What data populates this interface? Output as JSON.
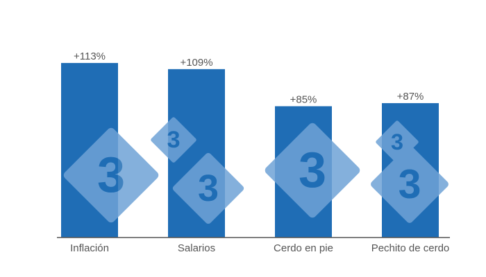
{
  "chart_data": {
    "type": "bar",
    "categories": [
      "Inflación",
      "Salarios",
      "Cerdo en pie",
      "Pechito de cerdo"
    ],
    "values": [
      113,
      109,
      85,
      87
    ],
    "data_labels": [
      "+113%",
      "+109%",
      "+85%",
      "+87%"
    ],
    "ylim": [
      0,
      130
    ],
    "grid": false,
    "legend": "none",
    "bar_color": "#1f6db5",
    "axis_color": "#555555",
    "label_color": "#555555",
    "watermark_color": "#6fa3d6"
  }
}
